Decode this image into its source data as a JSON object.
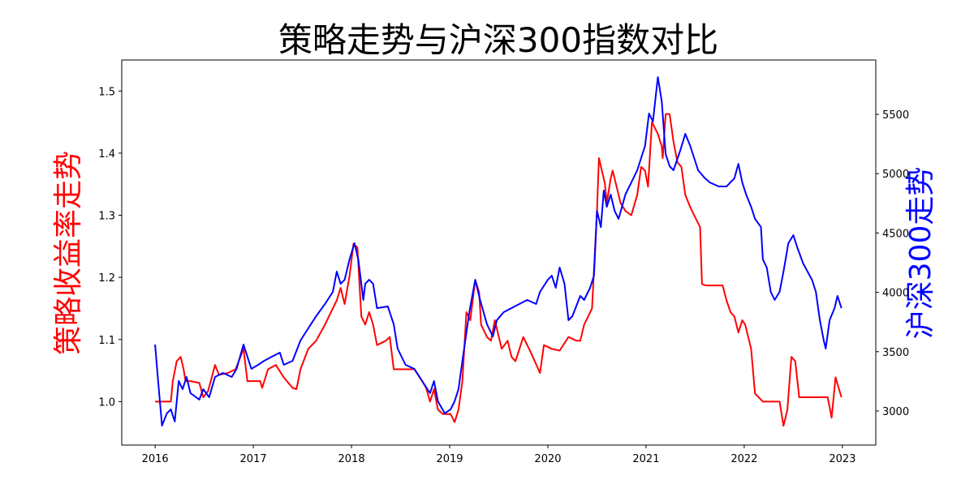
{
  "chart_data": {
    "type": "line",
    "title": "策略走势与沪深300指数对比",
    "xlabel": "",
    "ylabel_left": "策略收益率走势",
    "ylabel_right": "沪深300走势",
    "xlim": [
      2015.66,
      2023.34
    ],
    "ylim_left": [
      0.93,
      1.55
    ],
    "ylim_right": [
      2713,
      5958
    ],
    "grid": false,
    "x_ticks": [
      "2016",
      "2017",
      "2018",
      "2019",
      "2020",
      "2021",
      "2022",
      "2023"
    ],
    "y_left_ticks": [
      "1.0",
      "1.1",
      "1.2",
      "1.3",
      "1.4",
      "1.5"
    ],
    "y_right_ticks": [
      "3000",
      "3500",
      "4000",
      "4500",
      "5000",
      "5500"
    ],
    "colors": {
      "strategy": "#ff0000",
      "hs300": "#0000ff",
      "ylabel_left": "#ff0000",
      "ylabel_right": "#0000ff"
    },
    "series": [
      {
        "axis": "left",
        "color": "#ff0000",
        "points": [
          [
            2016.0,
            1.0
          ],
          [
            2016.16,
            1.0
          ],
          [
            2016.18,
            1.033
          ],
          [
            2016.22,
            1.065
          ],
          [
            2016.26,
            1.072
          ],
          [
            2016.29,
            1.052
          ],
          [
            2016.31,
            1.033
          ],
          [
            2016.36,
            1.033
          ],
          [
            2016.45,
            1.03
          ],
          [
            2016.49,
            1.007
          ],
          [
            2016.54,
            1.017
          ],
          [
            2016.61,
            1.059
          ],
          [
            2016.65,
            1.043
          ],
          [
            2016.74,
            1.046
          ],
          [
            2016.82,
            1.052
          ],
          [
            2016.9,
            1.085
          ],
          [
            2016.94,
            1.033
          ],
          [
            2017.07,
            1.033
          ],
          [
            2017.09,
            1.022
          ],
          [
            2017.15,
            1.052
          ],
          [
            2017.23,
            1.059
          ],
          [
            2017.31,
            1.039
          ],
          [
            2017.4,
            1.022
          ],
          [
            2017.44,
            1.02
          ],
          [
            2017.48,
            1.052
          ],
          [
            2017.56,
            1.085
          ],
          [
            2017.64,
            1.098
          ],
          [
            2017.73,
            1.124
          ],
          [
            2017.77,
            1.137
          ],
          [
            2017.85,
            1.163
          ],
          [
            2017.89,
            1.183
          ],
          [
            2017.93,
            1.157
          ],
          [
            2017.98,
            1.202
          ],
          [
            2018.02,
            1.254
          ],
          [
            2018.06,
            1.248
          ],
          [
            2018.1,
            1.137
          ],
          [
            2018.14,
            1.124
          ],
          [
            2018.18,
            1.144
          ],
          [
            2018.22,
            1.124
          ],
          [
            2018.26,
            1.091
          ],
          [
            2018.35,
            1.098
          ],
          [
            2018.39,
            1.104
          ],
          [
            2018.43,
            1.052
          ],
          [
            2018.64,
            1.052
          ],
          [
            2018.72,
            1.033
          ],
          [
            2018.76,
            1.022
          ],
          [
            2018.8,
            1.0
          ],
          [
            2018.84,
            1.02
          ],
          [
            2018.88,
            0.987
          ],
          [
            2018.93,
            0.98
          ],
          [
            2019.01,
            0.98
          ],
          [
            2019.05,
            0.967
          ],
          [
            2019.09,
            0.987
          ],
          [
            2019.13,
            1.033
          ],
          [
            2019.17,
            1.144
          ],
          [
            2019.21,
            1.131
          ],
          [
            2019.26,
            1.196
          ],
          [
            2019.3,
            1.176
          ],
          [
            2019.32,
            1.124
          ],
          [
            2019.38,
            1.104
          ],
          [
            2019.42,
            1.098
          ],
          [
            2019.46,
            1.131
          ],
          [
            2019.53,
            1.085
          ],
          [
            2019.59,
            1.098
          ],
          [
            2019.63,
            1.072
          ],
          [
            2019.67,
            1.065
          ],
          [
            2019.75,
            1.104
          ],
          [
            2019.83,
            1.078
          ],
          [
            2019.92,
            1.046
          ],
          [
            2019.96,
            1.091
          ],
          [
            2020.04,
            1.085
          ],
          [
            2020.12,
            1.082
          ],
          [
            2020.21,
            1.104
          ],
          [
            2020.29,
            1.098
          ],
          [
            2020.33,
            1.098
          ],
          [
            2020.37,
            1.124
          ],
          [
            2020.45,
            1.15
          ],
          [
            2020.5,
            1.307
          ],
          [
            2020.52,
            1.392
          ],
          [
            2020.58,
            1.352
          ],
          [
            2020.6,
            1.32
          ],
          [
            2020.64,
            1.359
          ],
          [
            2020.66,
            1.372
          ],
          [
            2020.7,
            1.346
          ],
          [
            2020.74,
            1.32
          ],
          [
            2020.79,
            1.307
          ],
          [
            2020.85,
            1.3
          ],
          [
            2020.91,
            1.333
          ],
          [
            2020.95,
            1.378
          ],
          [
            2020.99,
            1.372
          ],
          [
            2021.02,
            1.346
          ],
          [
            2021.06,
            1.45
          ],
          [
            2021.12,
            1.431
          ],
          [
            2021.16,
            1.411
          ],
          [
            2021.17,
            1.392
          ],
          [
            2021.2,
            1.463
          ],
          [
            2021.24,
            1.463
          ],
          [
            2021.28,
            1.418
          ],
          [
            2021.32,
            1.385
          ],
          [
            2021.36,
            1.378
          ],
          [
            2021.4,
            1.333
          ],
          [
            2021.45,
            1.313
          ],
          [
            2021.49,
            1.3
          ],
          [
            2021.55,
            1.281
          ],
          [
            2021.57,
            1.189
          ],
          [
            2021.61,
            1.187
          ],
          [
            2021.78,
            1.187
          ],
          [
            2021.82,
            1.163
          ],
          [
            2021.86,
            1.144
          ],
          [
            2021.9,
            1.137
          ],
          [
            2021.94,
            1.111
          ],
          [
            2021.98,
            1.131
          ],
          [
            2022.01,
            1.124
          ],
          [
            2022.07,
            1.085
          ],
          [
            2022.11,
            1.013
          ],
          [
            2022.19,
            1.0
          ],
          [
            2022.36,
            1.0
          ],
          [
            2022.4,
            0.961
          ],
          [
            2022.44,
            0.987
          ],
          [
            2022.48,
            1.072
          ],
          [
            2022.52,
            1.065
          ],
          [
            2022.56,
            1.007
          ],
          [
            2022.85,
            1.007
          ],
          [
            2022.89,
            0.974
          ],
          [
            2022.93,
            1.039
          ],
          [
            2022.99,
            1.007
          ]
        ]
      },
      {
        "axis": "right",
        "color": "#0000ff",
        "points": [
          [
            2016.0,
            3560
          ],
          [
            2016.03,
            3253
          ],
          [
            2016.07,
            2877
          ],
          [
            2016.12,
            2980
          ],
          [
            2016.16,
            3014
          ],
          [
            2016.2,
            2911
          ],
          [
            2016.24,
            3253
          ],
          [
            2016.28,
            3184
          ],
          [
            2016.32,
            3287
          ],
          [
            2016.36,
            3150
          ],
          [
            2016.45,
            3096
          ],
          [
            2016.49,
            3184
          ],
          [
            2016.55,
            3116
          ],
          [
            2016.61,
            3287
          ],
          [
            2016.69,
            3321
          ],
          [
            2016.78,
            3287
          ],
          [
            2016.83,
            3355
          ],
          [
            2016.9,
            3560
          ],
          [
            2016.94,
            3458
          ],
          [
            2016.98,
            3355
          ],
          [
            2017.05,
            3389
          ],
          [
            2017.11,
            3423
          ],
          [
            2017.19,
            3458
          ],
          [
            2017.27,
            3492
          ],
          [
            2017.31,
            3389
          ],
          [
            2017.4,
            3423
          ],
          [
            2017.48,
            3594
          ],
          [
            2017.56,
            3697
          ],
          [
            2017.64,
            3799
          ],
          [
            2017.73,
            3902
          ],
          [
            2017.81,
            4004
          ],
          [
            2017.85,
            4175
          ],
          [
            2017.89,
            4072
          ],
          [
            2017.93,
            4106
          ],
          [
            2017.98,
            4277
          ],
          [
            2018.03,
            4414
          ],
          [
            2018.07,
            4277
          ],
          [
            2018.12,
            3936
          ],
          [
            2018.14,
            4072
          ],
          [
            2018.18,
            4106
          ],
          [
            2018.22,
            4072
          ],
          [
            2018.26,
            3867
          ],
          [
            2018.37,
            3881
          ],
          [
            2018.43,
            3731
          ],
          [
            2018.47,
            3526
          ],
          [
            2018.55,
            3389
          ],
          [
            2018.64,
            3355
          ],
          [
            2018.72,
            3253
          ],
          [
            2018.8,
            3150
          ],
          [
            2018.84,
            3253
          ],
          [
            2018.88,
            3082
          ],
          [
            2018.95,
            2980
          ],
          [
            2019.01,
            3014
          ],
          [
            2019.05,
            3082
          ],
          [
            2019.09,
            3184
          ],
          [
            2019.13,
            3423
          ],
          [
            2019.2,
            3833
          ],
          [
            2019.26,
            4106
          ],
          [
            2019.31,
            3936
          ],
          [
            2019.38,
            3731
          ],
          [
            2019.44,
            3628
          ],
          [
            2019.48,
            3765
          ],
          [
            2019.55,
            3833
          ],
          [
            2019.71,
            3902
          ],
          [
            2019.79,
            3936
          ],
          [
            2019.88,
            3902
          ],
          [
            2019.92,
            4004
          ],
          [
            2020.0,
            4106
          ],
          [
            2020.04,
            4141
          ],
          [
            2020.08,
            4038
          ],
          [
            2020.12,
            4209
          ],
          [
            2020.17,
            4072
          ],
          [
            2020.21,
            3765
          ],
          [
            2020.25,
            3799
          ],
          [
            2020.33,
            3970
          ],
          [
            2020.37,
            3936
          ],
          [
            2020.43,
            4038
          ],
          [
            2020.47,
            4141
          ],
          [
            2020.5,
            4687
          ],
          [
            2020.54,
            4550
          ],
          [
            2020.57,
            4858
          ],
          [
            2020.6,
            4721
          ],
          [
            2020.64,
            4824
          ],
          [
            2020.68,
            4687
          ],
          [
            2020.72,
            4619
          ],
          [
            2020.79,
            4824
          ],
          [
            2020.85,
            4926
          ],
          [
            2020.91,
            5029
          ],
          [
            2020.99,
            5234
          ],
          [
            2021.03,
            5507
          ],
          [
            2021.07,
            5439
          ],
          [
            2021.12,
            5814
          ],
          [
            2021.16,
            5609
          ],
          [
            2021.2,
            5165
          ],
          [
            2021.24,
            5063
          ],
          [
            2021.28,
            5029
          ],
          [
            2021.35,
            5200
          ],
          [
            2021.4,
            5336
          ],
          [
            2021.45,
            5234
          ],
          [
            2021.53,
            5029
          ],
          [
            2021.6,
            4961
          ],
          [
            2021.65,
            4926
          ],
          [
            2021.74,
            4892
          ],
          [
            2021.82,
            4892
          ],
          [
            2021.9,
            4961
          ],
          [
            2021.94,
            5083
          ],
          [
            2021.98,
            4926
          ],
          [
            2022.02,
            4824
          ],
          [
            2022.07,
            4721
          ],
          [
            2022.11,
            4619
          ],
          [
            2022.17,
            4550
          ],
          [
            2022.19,
            4277
          ],
          [
            2022.23,
            4209
          ],
          [
            2022.27,
            4004
          ],
          [
            2022.31,
            3936
          ],
          [
            2022.36,
            4004
          ],
          [
            2022.4,
            4175
          ],
          [
            2022.45,
            4414
          ],
          [
            2022.5,
            4482
          ],
          [
            2022.54,
            4380
          ],
          [
            2022.6,
            4243
          ],
          [
            2022.69,
            4106
          ],
          [
            2022.73,
            4004
          ],
          [
            2022.77,
            3765
          ],
          [
            2022.81,
            3594
          ],
          [
            2022.83,
            3526
          ],
          [
            2022.87,
            3765
          ],
          [
            2022.92,
            3867
          ],
          [
            2022.95,
            3970
          ],
          [
            2022.99,
            3867
          ]
        ]
      }
    ]
  }
}
